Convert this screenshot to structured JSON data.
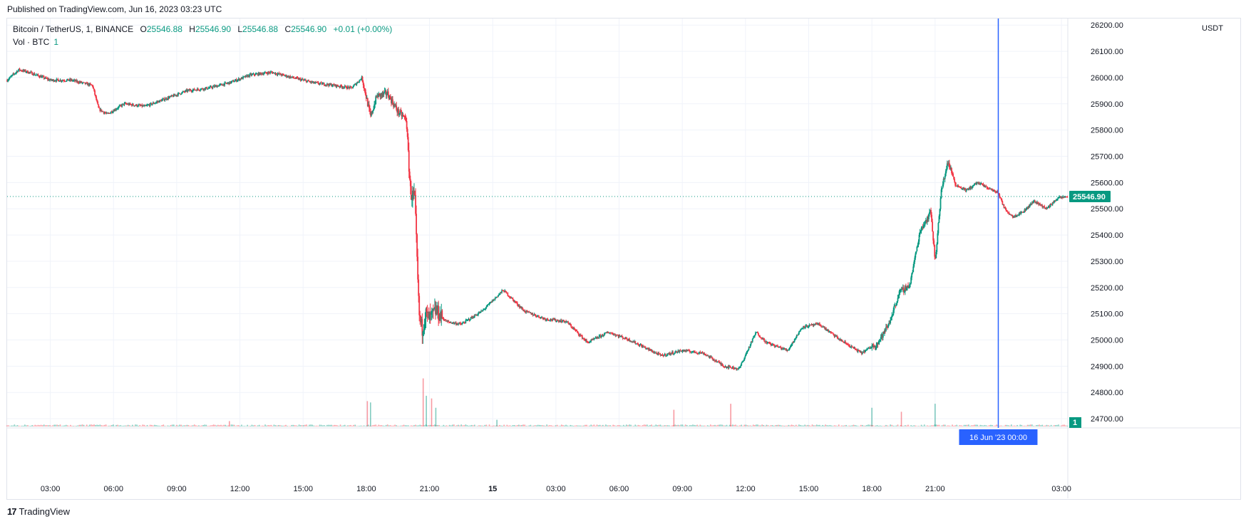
{
  "header": {
    "published": "Published on TradingView.com, Jun 16, 2023 03:23 UTC"
  },
  "legend": {
    "symbol": "Bitcoin / TetherUS, 1, BINANCE",
    "open_label": "O",
    "open": "25546.88",
    "high_label": "H",
    "high": "25546.90",
    "low_label": "L",
    "low": "25546.88",
    "close_label": "C",
    "close": "25546.90",
    "change": "+0.01 (+0.00%)",
    "volume_label": "Vol · BTC",
    "volume_value": "1"
  },
  "price_axis": {
    "currency": "USDT",
    "last_price": "25546.90",
    "volume_badge": "1"
  },
  "crosshair": {
    "time_label": "16 Jun '23   00:00"
  },
  "footer": {
    "brand": "TradingView",
    "logo_mark": "17"
  },
  "colors": {
    "up": "#089981",
    "down": "#f23645",
    "crosshair": "#2962ff",
    "grid": "#f0f3fa",
    "last_price_line": "#089981"
  },
  "chart_data": {
    "type": "candlestick",
    "title": "",
    "xlabel": "",
    "ylabel": "",
    "ylim": [
      24665,
      26225
    ],
    "y_ticks": [
      24700,
      24800,
      24900,
      25000,
      25100,
      25200,
      25300,
      25400,
      25500,
      25600,
      25700,
      25800,
      25900,
      26000,
      26100,
      26200
    ],
    "y_tick_labels": [
      "24700.00",
      "24800.00",
      "24900.00",
      "25000.00",
      "25100.00",
      "25200.00",
      "25300.00",
      "25400.00",
      "25500.00",
      "25600.00",
      "25700.00",
      "25800.00",
      "25900.00",
      "26000.00",
      "26100.00",
      "26200.00"
    ],
    "x_ticks": [
      "03:00",
      "06:00",
      "09:00",
      "12:00",
      "15:00",
      "18:00",
      "21:00",
      "15",
      "03:00",
      "06:00",
      "09:00",
      "12:00",
      "15:00",
      "18:00",
      "21:00",
      "03:00"
    ],
    "x_tick_hours": [
      3,
      6,
      9,
      12,
      15,
      18,
      21,
      24,
      27,
      30,
      33,
      36,
      39,
      42,
      45,
      51
    ],
    "x_range_hours": [
      0.95,
      51.3
    ],
    "last_price": 25546.9,
    "crosshair_hour": 48,
    "price_path": {
      "x_hours": [
        0.95,
        1.5,
        2.0,
        3.0,
        4.0,
        5.0,
        5.3,
        5.7,
        6.5,
        7.5,
        8.5,
        9.5,
        10.5,
        11.5,
        12.5,
        13.5,
        14.5,
        15.5,
        16.5,
        17.3,
        17.8,
        18.2,
        18.5,
        19.0,
        19.5,
        19.9,
        20.1,
        20.3,
        20.5,
        20.65,
        20.8,
        21.0,
        21.3,
        21.8,
        22.5,
        23.5,
        24.5,
        25.5,
        26.5,
        27.5,
        28.5,
        29.5,
        30.5,
        31.0,
        32.0,
        33.0,
        34.0,
        35.0,
        35.7,
        36.5,
        37.0,
        38.0,
        38.7,
        39.5,
        40.5,
        41.5,
        42.3,
        42.8,
        43.3,
        43.8,
        44.3,
        44.6,
        44.8,
        45.0,
        45.3,
        45.6,
        46.0,
        46.5,
        47.0,
        47.5,
        48.0,
        48.3,
        48.7,
        49.2,
        49.7,
        50.3,
        50.8,
        51.3
      ],
      "close": [
        25990,
        26030,
        26020,
        25990,
        25990,
        25970,
        25880,
        25860,
        25900,
        25890,
        25920,
        25950,
        25960,
        25980,
        26010,
        26020,
        26000,
        25980,
        25970,
        25960,
        26000,
        25850,
        25930,
        25940,
        25870,
        25840,
        25560,
        25540,
        25100,
        25040,
        25100,
        25080,
        25110,
        25070,
        25060,
        25110,
        25190,
        25110,
        25080,
        25070,
        24990,
        25030,
        25000,
        24980,
        24940,
        24960,
        24950,
        24900,
        24890,
        25030,
        24990,
        24960,
        25050,
        25060,
        25000,
        24950,
        24990,
        25060,
        25180,
        25210,
        25420,
        25460,
        25490,
        25300,
        25570,
        25680,
        25590,
        25570,
        25600,
        25580,
        25560,
        25500,
        25470,
        25490,
        25530,
        25500,
        25540,
        25547
      ]
    },
    "volume": {
      "max_btc": 400,
      "spikes": [
        {
          "x_hour": 18.05,
          "value": 190
        },
        {
          "x_hour": 18.2,
          "value": 180
        },
        {
          "x_hour": 20.7,
          "value": 360
        },
        {
          "x_hour": 20.85,
          "value": 230
        },
        {
          "x_hour": 21.1,
          "value": 210
        },
        {
          "x_hour": 21.3,
          "value": 140
        },
        {
          "x_hour": 11.5,
          "value": 40
        },
        {
          "x_hour": 24.2,
          "value": 50
        },
        {
          "x_hour": 35.3,
          "value": 170
        },
        {
          "x_hour": 42.0,
          "value": 140
        },
        {
          "x_hour": 43.4,
          "value": 110
        },
        {
          "x_hour": 45.0,
          "value": 170
        },
        {
          "x_hour": 32.6,
          "value": 125
        }
      ]
    }
  }
}
